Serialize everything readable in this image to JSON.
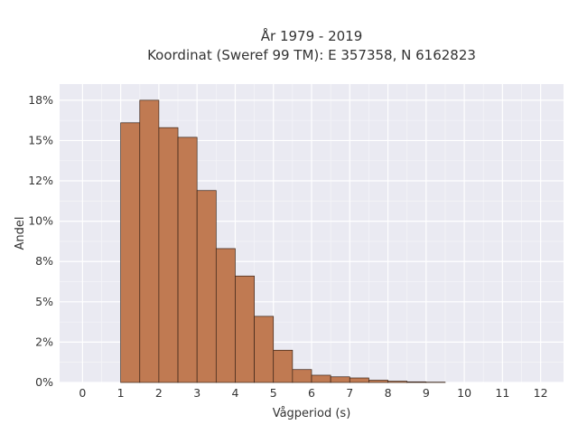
{
  "chart_data": {
    "type": "bar",
    "title_line1": "År 1979 - 2019",
    "title_line2": "Koordinat (Sweref 99 TM): E 357358, N 6162823",
    "xlabel": "Vågperiod (s)",
    "ylabel": "Andel",
    "xlim": [
      -0.6,
      12.6
    ],
    "ylim": [
      0,
      0.185
    ],
    "xticks": [
      0,
      1,
      2,
      3,
      4,
      5,
      6,
      7,
      8,
      9,
      10,
      11,
      12
    ],
    "xtick_labels": [
      "0",
      "1",
      "2",
      "3",
      "4",
      "5",
      "6",
      "7",
      "8",
      "9",
      "10",
      "11",
      "12"
    ],
    "yticks": [
      0,
      0.025,
      0.05,
      0.075,
      0.1,
      0.125,
      0.15,
      0.175
    ],
    "ytick_labels": [
      "0%",
      "2%",
      "5%",
      "8%",
      "10%",
      "12%",
      "15%",
      "18%"
    ],
    "grid": true,
    "bin_width": 0.5,
    "bins": [
      {
        "x0": 1.0,
        "value": 0.161
      },
      {
        "x0": 1.5,
        "value": 0.175
      },
      {
        "x0": 2.0,
        "value": 0.158
      },
      {
        "x0": 2.5,
        "value": 0.152
      },
      {
        "x0": 3.0,
        "value": 0.119
      },
      {
        "x0": 3.5,
        "value": 0.083
      },
      {
        "x0": 4.0,
        "value": 0.066
      },
      {
        "x0": 4.5,
        "value": 0.041
      },
      {
        "x0": 5.0,
        "value": 0.02
      },
      {
        "x0": 5.5,
        "value": 0.008
      },
      {
        "x0": 6.0,
        "value": 0.0045
      },
      {
        "x0": 6.5,
        "value": 0.0035
      },
      {
        "x0": 7.0,
        "value": 0.0028
      },
      {
        "x0": 7.5,
        "value": 0.0014
      },
      {
        "x0": 8.0,
        "value": 0.0008
      },
      {
        "x0": 8.5,
        "value": 0.0004
      },
      {
        "x0": 9.0,
        "value": 0.0002
      }
    ],
    "colors": {
      "bar_fill": "#c07a52",
      "bar_stroke": "#3a2418",
      "plot_bg": "#eaeaf2",
      "grid_major": "#ffffff",
      "grid_minor": "#f4f4f8"
    }
  }
}
